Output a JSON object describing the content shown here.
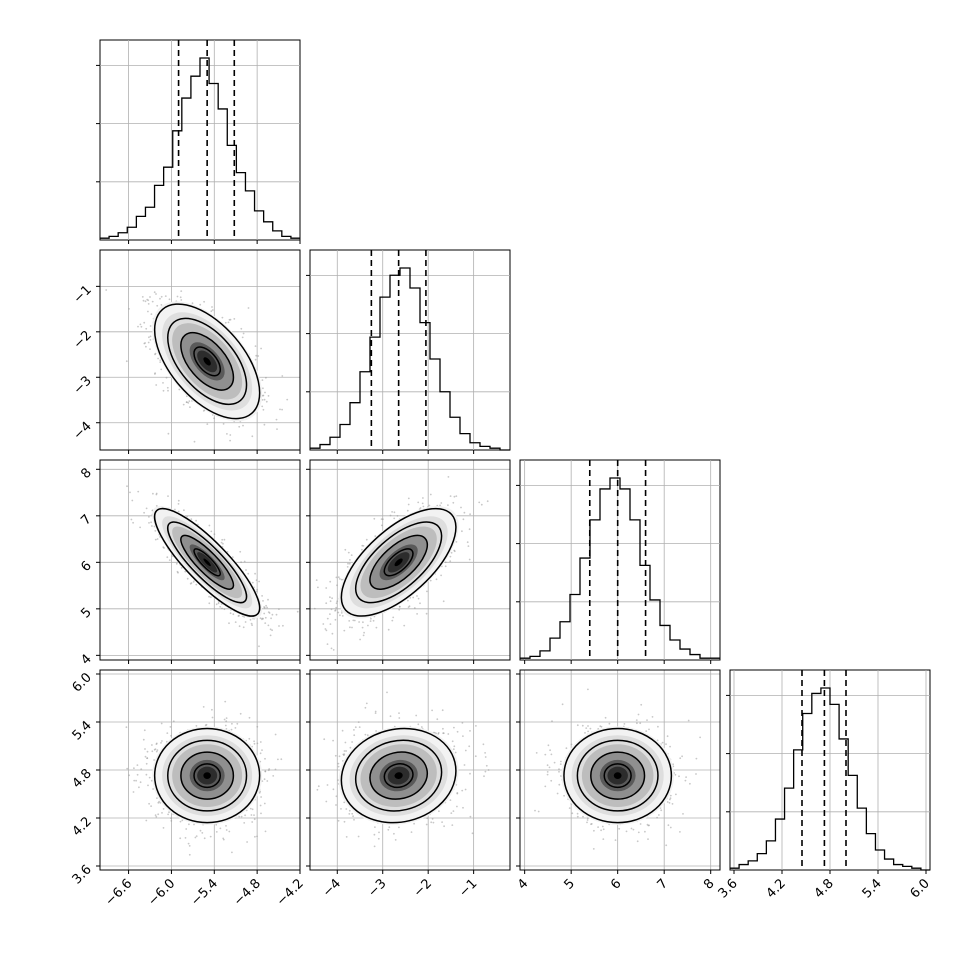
{
  "chart_data": {
    "type": "corner",
    "n_params": 4,
    "grid": true,
    "parameters": [
      {
        "ticks": [
          -6.6,
          -6.0,
          -5.4,
          -4.8,
          -4.2
        ],
        "tick_labels": [
          "−6.6",
          "−6.0",
          "−5.4",
          "−4.8",
          "−4.2"
        ],
        "range": [
          -7.0,
          -4.2
        ]
      },
      {
        "ticks": [
          -4,
          -3,
          -2,
          -1
        ],
        "tick_labels": [
          "−4",
          "−3",
          "−2",
          "−1"
        ],
        "range": [
          -4.6,
          -0.2
        ]
      },
      {
        "ticks": [
          4,
          5,
          6,
          7,
          8
        ],
        "tick_labels": [
          "4",
          "5",
          "6",
          "7",
          "8"
        ],
        "range": [
          3.9,
          8.2
        ]
      },
      {
        "ticks": [
          3.6,
          4.2,
          4.8,
          5.4,
          6.0
        ],
        "tick_labels": [
          "3.6",
          "4.2",
          "4.8",
          "5.4",
          "6.0"
        ],
        "range": [
          3.55,
          6.05
        ]
      }
    ],
    "histograms": [
      {
        "bins_lo": -7.0,
        "bins_hi": -4.2,
        "counts": [
          0.01,
          0.02,
          0.04,
          0.07,
          0.13,
          0.18,
          0.3,
          0.4,
          0.6,
          0.78,
          0.9,
          1.0,
          0.86,
          0.72,
          0.52,
          0.37,
          0.27,
          0.16,
          0.1,
          0.05,
          0.02,
          0.01
        ],
        "quantiles": [
          -5.9,
          -5.5,
          -5.12
        ]
      },
      {
        "bins_lo": -4.6,
        "bins_hi": -0.2,
        "counts": [
          0.01,
          0.03,
          0.07,
          0.14,
          0.26,
          0.43,
          0.62,
          0.84,
          0.96,
          1.0,
          0.89,
          0.7,
          0.5,
          0.32,
          0.18,
          0.09,
          0.04,
          0.02,
          0.01,
          0.0
        ],
        "quantiles": [
          -3.25,
          -2.65,
          -2.05
        ]
      },
      {
        "bins_lo": 3.9,
        "bins_hi": 8.2,
        "counts": [
          0.01,
          0.02,
          0.05,
          0.12,
          0.21,
          0.36,
          0.56,
          0.77,
          0.94,
          1.0,
          0.94,
          0.77,
          0.52,
          0.33,
          0.19,
          0.11,
          0.06,
          0.03,
          0.01,
          0.01
        ],
        "quantiles": [
          5.4,
          6.0,
          6.6
        ]
      },
      {
        "bins_lo": 3.55,
        "bins_hi": 6.05,
        "counts": [
          0.01,
          0.03,
          0.05,
          0.09,
          0.16,
          0.28,
          0.45,
          0.66,
          0.86,
          0.97,
          1.0,
          0.91,
          0.72,
          0.52,
          0.34,
          0.2,
          0.11,
          0.06,
          0.03,
          0.02,
          0.01,
          0.0
        ],
        "quantiles": [
          4.45,
          4.73,
          5.0
        ]
      }
    ],
    "pairs": [
      {
        "x": 0,
        "y": 1,
        "mean": [
          -5.5,
          -2.65
        ],
        "sd": [
          0.35,
          0.6
        ],
        "corr": -0.55
      },
      {
        "x": 0,
        "y": 2,
        "mean": [
          -5.5,
          6.0
        ],
        "sd": [
          0.35,
          0.55
        ],
        "corr": -0.85
      },
      {
        "x": 1,
        "y": 2,
        "mean": [
          -2.65,
          6.0
        ],
        "sd": [
          0.6,
          0.55
        ],
        "corr": 0.65
      },
      {
        "x": 0,
        "y": 3,
        "mean": [
          -5.5,
          4.73
        ],
        "sd": [
          0.35,
          0.28
        ],
        "corr": 0.0
      },
      {
        "x": 1,
        "y": 3,
        "mean": [
          -2.65,
          4.73
        ],
        "sd": [
          0.6,
          0.28
        ],
        "corr": 0.1
      },
      {
        "x": 2,
        "y": 3,
        "mean": [
          6.0,
          4.73
        ],
        "sd": [
          0.55,
          0.28
        ],
        "corr": 0.0
      }
    ],
    "contour_levels_sigma": [
      0.5,
      1.0,
      1.5,
      2.0
    ]
  }
}
